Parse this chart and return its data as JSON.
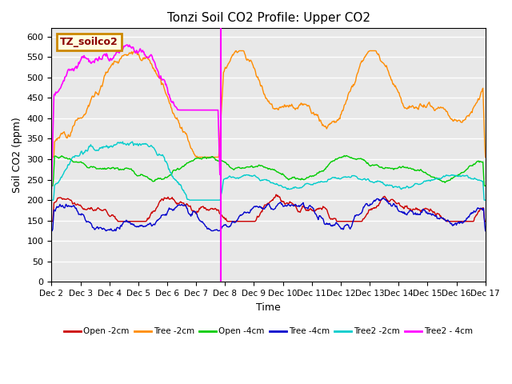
{
  "title": "Tonzi Soil CO2 Profile: Upper CO2",
  "ylabel": "Soil CO2 (ppm)",
  "xlabel": "Time",
  "legend_label": "TZ_soilco2",
  "ylim": [
    0,
    620
  ],
  "yticks": [
    0,
    50,
    100,
    150,
    200,
    250,
    300,
    350,
    400,
    450,
    500,
    550,
    600
  ],
  "x_start": 2,
  "x_end": 17,
  "x_ticks": [
    2,
    3,
    4,
    5,
    6,
    7,
    8,
    9,
    10,
    11,
    12,
    13,
    14,
    15,
    16,
    17
  ],
  "x_tick_labels": [
    "Dec 2",
    "Dec 3",
    "Dec 4",
    "Dec 5",
    "Dec 6",
    "Dec 7",
    "Dec 8",
    "Dec 9",
    "Dec 10",
    "Dec 11",
    "Dec 12",
    "Dec 13",
    "Dec 14",
    "Dec 15",
    "Dec 16",
    "Dec 17"
  ],
  "vline_x": 7.85,
  "vline_color": "#FF00FF",
  "bg_color": "#E8E8E8",
  "series_colors": {
    "open2": "#CC0000",
    "tree2": "#FF8C00",
    "open4": "#00CC00",
    "tree4": "#0000CC",
    "tree2_2cm": "#00CCCC",
    "tree2_4cm": "#FF00FF"
  },
  "series_labels": [
    "Open -2cm",
    "Tree -2cm",
    "Open -4cm",
    "Tree -4cm",
    "Tree2 -2cm",
    "Tree2 - 4cm"
  ]
}
